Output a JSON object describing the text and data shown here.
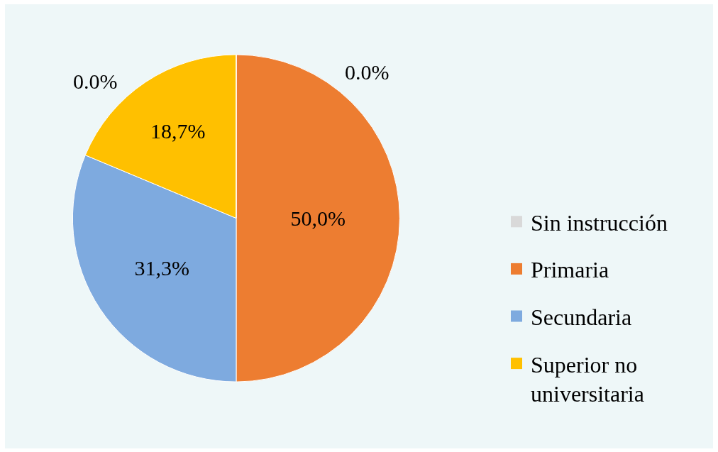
{
  "chart_data": {
    "type": "pie",
    "categories": [
      "Sin instrucción",
      "Primaria",
      "Secundaria",
      "Superior no universitaria",
      null
    ],
    "values": [
      0,
      50.0,
      31.3,
      18.7,
      0
    ],
    "colors": [
      "#d9d9d9",
      "#ed7d31",
      "#7eaadf",
      "#ffc000",
      null
    ],
    "value_labels": [
      "0.0%",
      "50,0%",
      "31,3%",
      "18,7%",
      "0.0%"
    ],
    "legend": "right"
  }
}
